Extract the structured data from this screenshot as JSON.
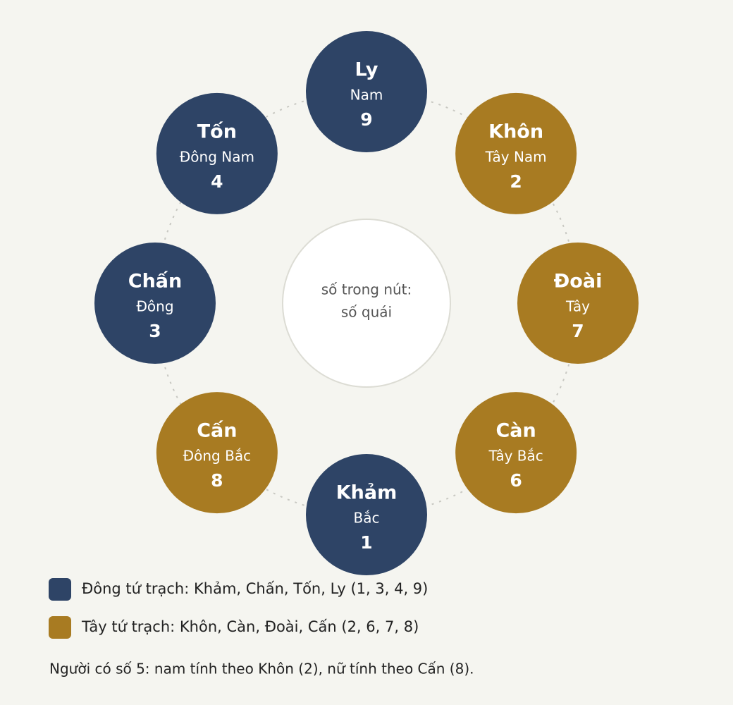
{
  "center": {
    "lines": [
      "số trong nút:",
      "số quái"
    ]
  },
  "nodes": [
    {
      "name": "Ly",
      "direction": "Nam",
      "number": 9,
      "color": "#2e4466"
    },
    {
      "name": "Khôn",
      "direction": "Tây Nam",
      "number": 2,
      "color": "#a87b22"
    },
    {
      "name": "Đoài",
      "direction": "Tây",
      "number": 7,
      "color": "#a87b22"
    },
    {
      "name": "Càn",
      "direction": "Tây Bắc",
      "number": 6,
      "color": "#a87b22"
    },
    {
      "name": "Khảm",
      "direction": "Bắc",
      "number": 1,
      "color": "#2e4466"
    },
    {
      "name": "Cấn",
      "direction": "Đông Bắc",
      "number": 8,
      "color": "#a87b22"
    },
    {
      "name": "Chấn",
      "direction": "Đông",
      "number": 3,
      "color": "#2e4466"
    },
    {
      "name": "Tốn",
      "direction": "Đông Nam",
      "number": 4,
      "color": "#2e4466"
    }
  ],
  "legend": [
    {
      "color": "#2e4466",
      "text": "Đông tứ trạch: Khảm, Chấn, Tốn, Ly (1, 3, 4, 9)"
    },
    {
      "color": "#a87b22",
      "text": "Tây tứ trạch: Khôn, Càn, Đoài, Cấn (2, 6, 7, 8)"
    }
  ],
  "note": "Người có số 5: nam tính theo Khôn (2), nữ tính theo Cấn (8)."
}
